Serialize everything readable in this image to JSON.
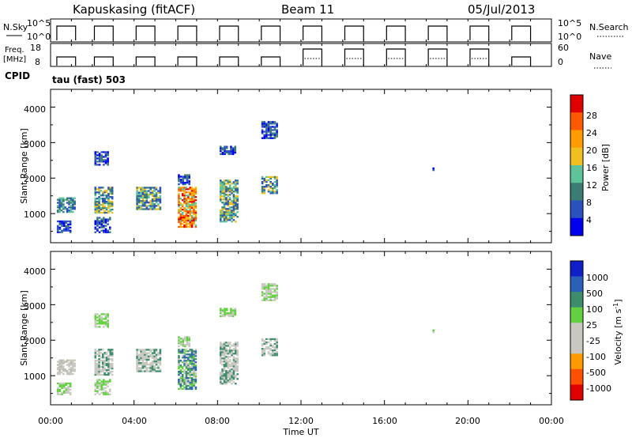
{
  "header": {
    "station": "Kapuskasing (fitACF)",
    "beam": "Beam 11",
    "date": "05/Jul/2013"
  },
  "top_panels": {
    "nsky_label": "N.Sky",
    "nsky_ticks": [
      "10^5",
      "10^0"
    ],
    "nsearch_label": "N.Search",
    "freq_label_1": "Freq.",
    "freq_label_2": "[MHz]",
    "freq_ticks": [
      "18",
      "8"
    ],
    "nave_ticks": [
      "60",
      "0"
    ],
    "nave_label": "Nave",
    "cpid_label": "CPID",
    "cpid_value": "tau (fast) 503"
  },
  "axes": {
    "ylabel": "Slant Range [km]",
    "yticks": [
      "4000",
      "3000",
      "2000",
      "1000"
    ],
    "xlabel": "Time UT",
    "xticks": [
      "00:00",
      "04:00",
      "08:00",
      "12:00",
      "16:00",
      "20:00",
      "00:00"
    ]
  },
  "colorbars": {
    "power": {
      "label": "Power [dB]",
      "ticks": [
        "28",
        "24",
        "20",
        "16",
        "12",
        "8",
        "4"
      ],
      "colors": [
        "#0000ee",
        "#2a52be",
        "#3b7d74",
        "#5ec39b",
        "#f0c020",
        "#ff9d00",
        "#ff5a00",
        "#e00000"
      ]
    },
    "velocity": {
      "label": "Velocity [m s",
      "label_sup": "-1",
      "label_end": "]",
      "ticks": [
        "1000",
        "500",
        "100",
        "25",
        "-25",
        "-100",
        "-500",
        "-1000"
      ],
      "colors": [
        "#1020c8",
        "#2a60b8",
        "#3d8c6c",
        "#62d040",
        "#c8c8c0",
        "#c8c8c0",
        "#ff9a00",
        "#ff5000",
        "#e00000"
      ]
    }
  },
  "chart_data": {
    "type": "heatmap",
    "x_range_hours": [
      0,
      24
    ],
    "y_range_km": [
      180,
      4500
    ],
    "scatter_blocks": [
      {
        "t0": 0.3,
        "t1": 1.2,
        "r0": 1020,
        "r1": 1450,
        "power": "mid"
      },
      {
        "t0": 0.3,
        "t1": 1.0,
        "r0": 450,
        "r1": 800,
        "power": "low"
      },
      {
        "t0": 2.1,
        "t1": 3.0,
        "r0": 1000,
        "r1": 1750,
        "power": "high"
      },
      {
        "t0": 2.1,
        "t1": 2.8,
        "r0": 2350,
        "r1": 2750,
        "power": "low"
      },
      {
        "t0": 2.1,
        "t1": 2.9,
        "r0": 450,
        "r1": 900,
        "power": "low"
      },
      {
        "t0": 4.1,
        "t1": 5.3,
        "r0": 1100,
        "r1": 1750,
        "power": "high"
      },
      {
        "t0": 6.1,
        "t1": 7.0,
        "r0": 600,
        "r1": 1750,
        "power": "strong"
      },
      {
        "t0": 6.1,
        "t1": 6.7,
        "r0": 1800,
        "r1": 2100,
        "power": "low"
      },
      {
        "t0": 8.1,
        "t1": 9.0,
        "r0": 750,
        "r1": 1950,
        "power": "high"
      },
      {
        "t0": 8.1,
        "t1": 8.9,
        "r0": 2650,
        "r1": 2900,
        "power": "low"
      },
      {
        "t0": 10.1,
        "t1": 10.9,
        "r0": 1550,
        "r1": 2050,
        "power": "high"
      },
      {
        "t0": 10.1,
        "t1": 10.9,
        "r0": 3100,
        "r1": 3600,
        "power": "low"
      },
      {
        "t0": 18.3,
        "t1": 18.5,
        "r0": 2200,
        "r1": 2300,
        "power": "low"
      }
    ]
  }
}
